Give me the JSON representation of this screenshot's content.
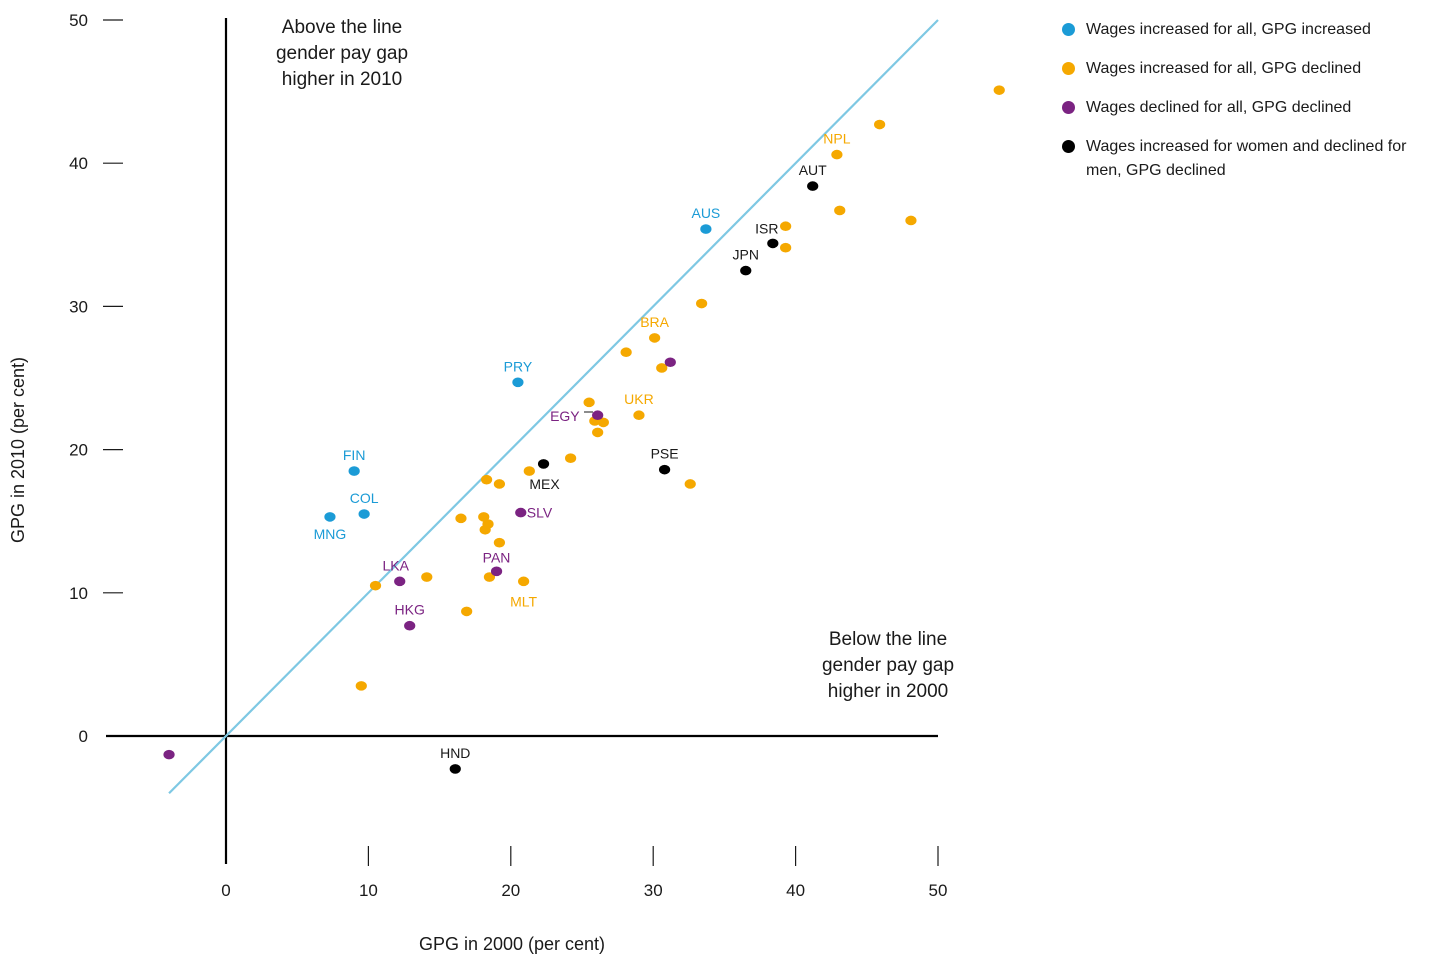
{
  "chart_data": {
    "type": "scatter",
    "xlabel": "GPG in 2000 (per cent)",
    "ylabel": "GPG in 2010 (per cent)",
    "xlim": [
      -7,
      52
    ],
    "ylim": [
      -8,
      50
    ],
    "xticks": [
      0,
      10,
      20,
      30,
      40,
      50
    ],
    "yticks": [
      0,
      10,
      20,
      30,
      40,
      50
    ],
    "reference_line": {
      "type": "diagonal y=x",
      "from": [
        -4,
        -4
      ],
      "to": [
        50,
        50
      ],
      "color": "#7ec8e3"
    },
    "annotations": {
      "above": [
        "Above the line",
        "gender pay gap",
        "higher in 2010"
      ],
      "below": [
        "Below the line",
        "gender pay gap",
        "higher in 2000"
      ]
    },
    "legend_position": "top-right",
    "series": [
      {
        "name": "Wages increased for all, GPG increased",
        "color": "#1b9bd6",
        "points": [
          {
            "x": 33.7,
            "y": 35.4,
            "label": "AUS"
          },
          {
            "x": 20.5,
            "y": 24.7,
            "label": "PRY"
          },
          {
            "x": 9.0,
            "y": 18.5,
            "label": "FIN"
          },
          {
            "x": 9.7,
            "y": 15.5,
            "label": "COL"
          },
          {
            "x": 7.3,
            "y": 15.3,
            "label": "MNG"
          }
        ]
      },
      {
        "name": "Wages increased for all, GPG declined",
        "color": "#f5a800",
        "points": [
          {
            "x": 54.3,
            "y": 45.1,
            "label": ""
          },
          {
            "x": 45.9,
            "y": 42.7,
            "label": ""
          },
          {
            "x": 42.9,
            "y": 40.6,
            "label": "NPL"
          },
          {
            "x": 39.3,
            "y": 35.6,
            "label": ""
          },
          {
            "x": 43.1,
            "y": 36.7,
            "label": ""
          },
          {
            "x": 48.1,
            "y": 36.0,
            "label": ""
          },
          {
            "x": 39.3,
            "y": 34.1,
            "label": ""
          },
          {
            "x": 33.4,
            "y": 30.2,
            "label": ""
          },
          {
            "x": 30.1,
            "y": 27.8,
            "label": "BRA"
          },
          {
            "x": 28.1,
            "y": 26.8,
            "label": ""
          },
          {
            "x": 30.6,
            "y": 25.7,
            "label": ""
          },
          {
            "x": 25.5,
            "y": 23.3,
            "label": ""
          },
          {
            "x": 29.0,
            "y": 22.4,
            "label": "UKR"
          },
          {
            "x": 25.9,
            "y": 22.0,
            "label": ""
          },
          {
            "x": 26.5,
            "y": 21.9,
            "label": ""
          },
          {
            "x": 26.1,
            "y": 21.2,
            "label": ""
          },
          {
            "x": 24.2,
            "y": 19.4,
            "label": ""
          },
          {
            "x": 21.3,
            "y": 18.5,
            "label": ""
          },
          {
            "x": 18.3,
            "y": 17.9,
            "label": ""
          },
          {
            "x": 19.2,
            "y": 17.6,
            "label": ""
          },
          {
            "x": 32.6,
            "y": 17.6,
            "label": ""
          },
          {
            "x": 16.5,
            "y": 15.2,
            "label": ""
          },
          {
            "x": 18.1,
            "y": 15.3,
            "label": ""
          },
          {
            "x": 18.4,
            "y": 14.8,
            "label": ""
          },
          {
            "x": 18.2,
            "y": 14.4,
            "label": ""
          },
          {
            "x": 19.2,
            "y": 13.5,
            "label": ""
          },
          {
            "x": 14.1,
            "y": 11.1,
            "label": ""
          },
          {
            "x": 10.5,
            "y": 10.5,
            "label": ""
          },
          {
            "x": 18.5,
            "y": 11.1,
            "label": ""
          },
          {
            "x": 20.9,
            "y": 10.8,
            "label": "MLT"
          },
          {
            "x": 16.9,
            "y": 8.7,
            "label": ""
          },
          {
            "x": 9.5,
            "y": 3.5,
            "label": ""
          }
        ]
      },
      {
        "name": "Wages declined for all, GPG declined",
        "color": "#7b2382",
        "points": [
          {
            "x": 31.2,
            "y": 26.1,
            "label": ""
          },
          {
            "x": 26.1,
            "y": 22.4,
            "label": "EGY"
          },
          {
            "x": 20.7,
            "y": 15.6,
            "label": "SLV"
          },
          {
            "x": 19.0,
            "y": 11.5,
            "label": "PAN"
          },
          {
            "x": 12.2,
            "y": 10.8,
            "label": "LKA"
          },
          {
            "x": 12.9,
            "y": 7.7,
            "label": "HKG"
          },
          {
            "x": -4.0,
            "y": -1.3,
            "label": ""
          }
        ]
      },
      {
        "name": "Wages increased for women and declined for men, GPG declined",
        "color": "#000000",
        "points": [
          {
            "x": 41.2,
            "y": 38.4,
            "label": "AUT"
          },
          {
            "x": 38.4,
            "y": 34.4,
            "label": "ISR"
          },
          {
            "x": 36.5,
            "y": 32.5,
            "label": "JPN"
          },
          {
            "x": 30.8,
            "y": 18.6,
            "label": "PSE"
          },
          {
            "x": 22.3,
            "y": 19.0,
            "label": "MEX"
          },
          {
            "x": 16.1,
            "y": -2.3,
            "label": "HND"
          }
        ]
      }
    ]
  }
}
